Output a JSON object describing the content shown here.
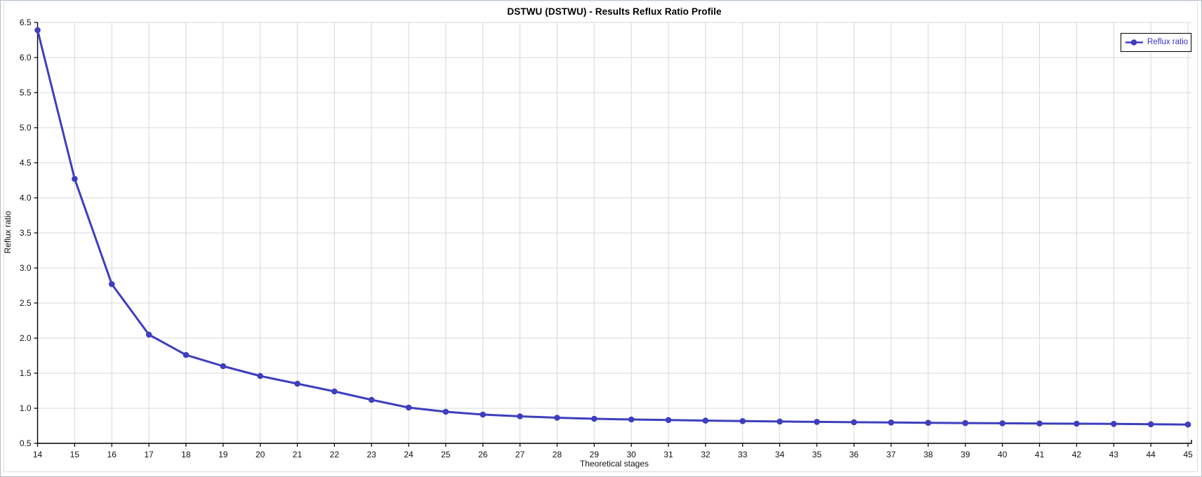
{
  "window": {
    "title": "DSTWU (DSTWU) - Results Reflux Ratio Profile"
  },
  "chart_data": {
    "type": "line",
    "title": "DSTWU (DSTWU) - Results Reflux Ratio Profile",
    "xlabel": "Theoretical stages",
    "ylabel": "Reflux ratio",
    "xlim": [
      14,
      45
    ],
    "ylim": [
      0.5,
      6.5
    ],
    "x_tick_step": 1,
    "y_tick_step": 0.5,
    "grid": true,
    "legend": {
      "position": "top-right",
      "label": "Reflux ratio"
    },
    "series": [
      {
        "name": "Reflux ratio",
        "marker": "circle",
        "color": "#3E3EBE",
        "x": [
          14,
          15,
          16,
          17,
          18,
          19,
          20,
          21,
          22,
          23,
          24,
          25,
          26,
          27,
          28,
          29,
          30,
          31,
          32,
          33,
          34,
          35,
          36,
          37,
          38,
          39,
          40,
          41,
          42,
          43,
          44,
          45
        ],
        "y": [
          6.39,
          4.27,
          2.77,
          2.05,
          1.76,
          1.6,
          1.46,
          1.35,
          1.24,
          1.12,
          1.01,
          0.95,
          0.91,
          0.885,
          0.865,
          0.85,
          0.84,
          0.832,
          0.824,
          0.817,
          0.811,
          0.806,
          0.801,
          0.797,
          0.793,
          0.789,
          0.786,
          0.783,
          0.78,
          0.777,
          0.772,
          0.768
        ]
      }
    ],
    "colors": {
      "series_line": "#3E3EBE",
      "grid": "#D8D8D8",
      "axis": "#000000",
      "tick_text": "#111111",
      "legend_text": "#3333CC",
      "legend_border": "#000000",
      "background": "#FFFFFF"
    }
  }
}
